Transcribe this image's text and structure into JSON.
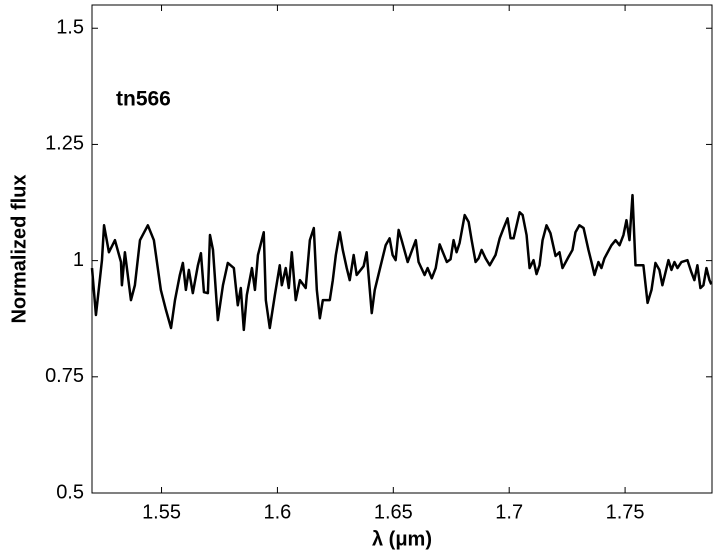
{
  "chart_data": {
    "type": "line",
    "annotation": "tn566",
    "xlabel": "λ (μm)",
    "ylabel": "Normalized flux",
    "xlim": [
      1.52,
      1.7875
    ],
    "ylim": [
      0.5,
      1.55
    ],
    "xticks": [
      1.55,
      1.6,
      1.65,
      1.7,
      1.75
    ],
    "yticks": [
      0.5,
      0.75,
      1,
      1.25,
      1.5
    ],
    "grid": false,
    "series": [
      {
        "color": "#000000",
        "x": [
          1.52,
          1.5217,
          1.5243,
          1.5252,
          1.5273,
          1.5299,
          1.5325,
          1.5329,
          1.5342,
          1.5368,
          1.5385,
          1.5407,
          1.5441,
          1.5467,
          1.5497,
          1.5519,
          1.5541,
          1.5558,
          1.5579,
          1.5592,
          1.5605,
          1.5618,
          1.5635,
          1.5657,
          1.567,
          1.5683,
          1.57,
          1.5709,
          1.5722,
          1.5743,
          1.5765,
          1.5786,
          1.5812,
          1.5829,
          1.5842,
          1.5855,
          1.5868,
          1.589,
          1.5903,
          1.5916,
          1.5941,
          1.595,
          1.5967,
          1.5989,
          1.601,
          1.6019,
          1.6036,
          1.6049,
          1.6062,
          1.6079,
          1.6097,
          1.6122,
          1.614,
          1.6157,
          1.617,
          1.6183,
          1.6196,
          1.6226,
          1.6239,
          1.6252,
          1.6269,
          1.6282,
          1.6299,
          1.6312,
          1.6329,
          1.6342,
          1.6372,
          1.6385,
          1.6407,
          1.642,
          1.6441,
          1.6467,
          1.6484,
          1.6497,
          1.651,
          1.6523,
          1.6536,
          1.6562,
          1.6597,
          1.6609,
          1.6635,
          1.6648,
          1.6666,
          1.6683,
          1.67,
          1.6731,
          1.6747,
          1.676,
          1.6773,
          1.6786,
          1.6808,
          1.6825,
          1.6838,
          1.6855,
          1.6868,
          1.6881,
          1.6898,
          1.6916,
          1.6941,
          1.6959,
          1.6976,
          1.6993,
          1.7006,
          1.7019,
          1.7045,
          1.7058,
          1.7075,
          1.7088,
          1.7105,
          1.7118,
          1.7131,
          1.7144,
          1.7161,
          1.7178,
          1.72,
          1.7217,
          1.723,
          1.7256,
          1.7273,
          1.7286,
          1.7303,
          1.7321,
          1.7342,
          1.7355,
          1.7368,
          1.7385,
          1.7398,
          1.7411,
          1.7441,
          1.7459,
          1.7476,
          1.7493,
          1.7506,
          1.7519,
          1.7532,
          1.7545,
          1.7579,
          1.7597,
          1.7614,
          1.7631,
          1.7648,
          1.7661,
          1.7687,
          1.77,
          1.7713,
          1.7726,
          1.7743,
          1.7769,
          1.7786,
          1.7799,
          1.7812,
          1.7825,
          1.7838,
          1.7851,
          1.7864,
          1.7872
        ],
        "values": [
          0.984,
          0.883,
          1.001,
          1.076,
          1.018,
          1.044,
          0.997,
          0.947,
          1.018,
          0.915,
          0.947,
          1.044,
          1.076,
          1.044,
          0.937,
          0.894,
          0.855,
          0.915,
          0.969,
          0.995,
          0.937,
          0.98,
          0.93,
          0.99,
          1.016,
          0.932,
          0.93,
          1.055,
          1.023,
          0.872,
          0.947,
          0.995,
          0.984,
          0.904,
          0.941,
          0.851,
          0.926,
          0.984,
          0.937,
          1.012,
          1.061,
          0.915,
          0.855,
          0.926,
          0.99,
          0.947,
          0.984,
          0.941,
          1.018,
          0.915,
          0.958,
          0.941,
          1.044,
          1.07,
          0.937,
          0.876,
          0.915,
          0.915,
          0.958,
          1.012,
          1.061,
          1.023,
          0.984,
          0.958,
          1.012,
          0.969,
          0.988,
          1.018,
          0.887,
          0.937,
          0.98,
          1.033,
          1.048,
          1.012,
          1.001,
          1.066,
          1.044,
          0.997,
          1.044,
          0.997,
          0.969,
          0.984,
          0.962,
          0.984,
          1.035,
          0.997,
          1.003,
          1.044,
          1.018,
          1.038,
          1.098,
          1.083,
          1.044,
          0.997,
          1.005,
          1.023,
          1.005,
          0.99,
          1.012,
          1.048,
          1.07,
          1.091,
          1.048,
          1.048,
          1.104,
          1.098,
          1.055,
          0.984,
          1.001,
          0.971,
          0.99,
          1.044,
          1.076,
          1.059,
          1.01,
          1.018,
          0.984,
          1.008,
          1.023,
          1.061,
          1.076,
          1.07,
          1.023,
          0.997,
          0.969,
          0.997,
          0.984,
          1.005,
          1.033,
          1.044,
          1.033,
          1.055,
          1.087,
          1.044,
          1.141,
          0.99,
          0.99,
          0.909,
          0.937,
          0.995,
          0.98,
          0.947,
          1.001,
          0.98,
          0.997,
          0.984,
          0.997,
          1.001,
          0.975,
          0.958,
          0.99,
          0.941,
          0.947,
          0.984,
          0.958,
          0.949
        ]
      }
    ]
  }
}
